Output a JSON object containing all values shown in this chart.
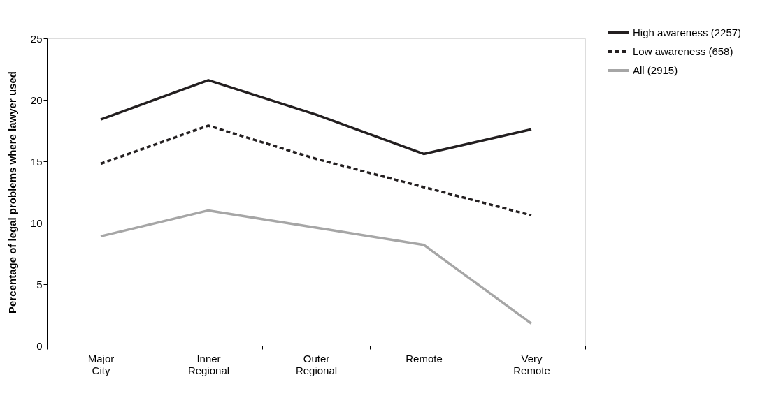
{
  "chart_data": {
    "type": "line",
    "ylabel": "Percentage of legal problems where lawyer used",
    "categories": [
      "Major City",
      "Inner Regional",
      "Outer Regional",
      "Remote",
      "Very Remote"
    ],
    "series": [
      {
        "name": "High awareness (2257)",
        "color": "#231f20",
        "line_style": "solid",
        "values": [
          18.4,
          21.6,
          18.8,
          15.6,
          17.6
        ]
      },
      {
        "name": "Low awareness (658)",
        "color": "#231f20",
        "line_style": "dashed",
        "values": [
          14.8,
          17.9,
          15.2,
          12.9,
          10.6
        ]
      },
      {
        "name": "All (2915)",
        "color": "#a6a6a6",
        "line_style": "solid",
        "values": [
          8.9,
          11.0,
          9.6,
          8.2,
          1.8
        ]
      }
    ],
    "ylim": [
      0,
      25
    ],
    "yticks": [
      0,
      5,
      10,
      15,
      20,
      25
    ],
    "grid": false,
    "legend": "top right",
    "marker": "none"
  }
}
